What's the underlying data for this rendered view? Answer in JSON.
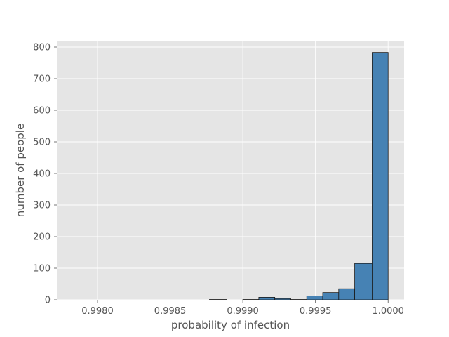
{
  "chart_data": {
    "type": "bar",
    "subtype": "histogram",
    "title": "",
    "xlabel": "probability of infection",
    "ylabel": "number of people",
    "xlim": [
      0.99772,
      1.00011
    ],
    "ylim": [
      0,
      820
    ],
    "xticks": [
      0.998,
      0.9985,
      0.999,
      0.9995,
      1.0
    ],
    "xtick_labels": [
      "0.9980",
      "0.9985",
      "0.9990",
      "0.9995",
      "1.0000"
    ],
    "yticks": [
      0,
      100,
      200,
      300,
      400,
      500,
      600,
      700,
      800
    ],
    "ytick_labels": [
      "0",
      "100",
      "200",
      "300",
      "400",
      "500",
      "600",
      "700",
      "800"
    ],
    "grid": true,
    "bin_edges": [
      0.99777,
      0.99788,
      0.99799,
      0.9981,
      0.99822,
      0.99833,
      0.99844,
      0.99855,
      0.99866,
      0.99877,
      0.99889,
      0.999,
      0.99911,
      0.99922,
      0.99933,
      0.99944,
      0.99955,
      0.99966,
      0.99977,
      0.99989,
      1.0
    ],
    "counts": [
      0,
      0,
      0,
      0,
      0,
      0,
      0,
      0,
      0,
      1,
      0,
      1,
      8,
      4,
      1,
      12,
      23,
      35,
      115,
      783
    ],
    "colors": {
      "bar_fill": "#4682b4",
      "bar_edge": "#1a1a1a",
      "plot_background": "#e5e5e5",
      "grid": "#ffffff",
      "text": "#555555"
    }
  }
}
